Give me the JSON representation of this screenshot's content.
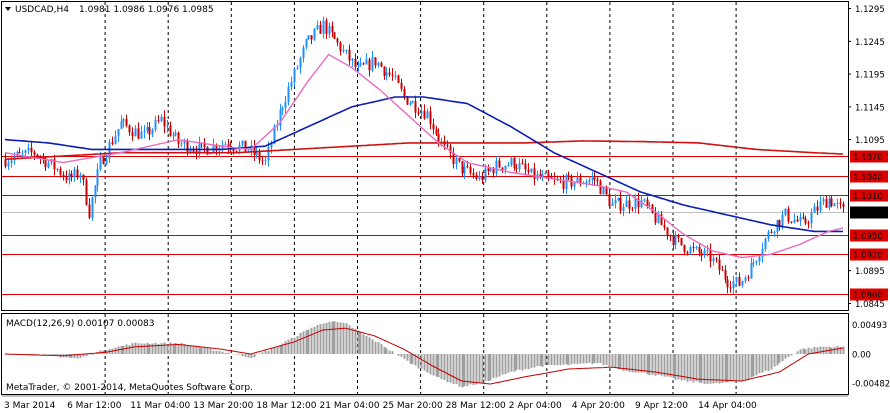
{
  "header": {
    "symbol": "USDCAD,H4",
    "ohlc": "1.0981 1.0986 1.0976 1.0985",
    "collapse_icon": "triangle-down-icon"
  },
  "macd": {
    "label": "MACD(12,26,9) 0.00107 0.00083",
    "axis_labels": [
      "0.00493",
      "0.00",
      "-0.00482"
    ]
  },
  "copyright": "MetaTrader, © 2001-2014, MetaQuotes Software Corp.",
  "colors": {
    "background": "#ffffff",
    "bull_candle": "#1e90ff",
    "bear_candle": "#cc0000",
    "ma_fast": "#e86cc0",
    "ma_slow": "#0a1eb4",
    "ma_long": "#d01010",
    "level_line": "#dd0000",
    "macd_hist": "#a0a0a0",
    "macd_signal": "#c80000"
  },
  "chart_data": {
    "type": "candlestick",
    "title": "USDCAD,H4",
    "price_axis": {
      "labels": [
        "1.1295",
        "1.1245",
        "1.1195",
        "1.1145",
        "1.1095",
        "1.0895",
        "1.0845"
      ],
      "range": [
        1.0835,
        1.1305
      ]
    },
    "price_levels": [
      {
        "label": "1.1070",
        "value": 1.107
      },
      {
        "label": "1.1040",
        "value": 1.104
      },
      {
        "label": "1.1010",
        "value": 1.101
      },
      {
        "label": "1.0950",
        "value": 1.095
      },
      {
        "label": "1.0920",
        "value": 1.092
      },
      {
        "label": "1.0860",
        "value": 1.086
      }
    ],
    "current_price": {
      "label": "1.0985",
      "value": 1.0985
    },
    "time_labels": [
      "3 Mar 2014",
      "6 Mar 12:00",
      "11 Mar 04:00",
      "13 Mar 20:00",
      "18 Mar 12:00",
      "21 Mar 04:00",
      "25 Mar 20:00",
      "28 Mar 12:00",
      "2 Apr 04:00",
      "4 Apr 20:00",
      "9 Apr 12:00",
      "14 Apr 04:00"
    ],
    "close_path": [
      [
        0,
        1.1065
      ],
      [
        10,
        1.1075
      ],
      [
        18,
        1.105
      ],
      [
        22,
        1.1035
      ],
      [
        26,
        1.1045
      ],
      [
        29,
        1.0985
      ],
      [
        33,
        1.106
      ],
      [
        40,
        1.112
      ],
      [
        48,
        1.11
      ],
      [
        54,
        1.1125
      ],
      [
        60,
        1.109
      ],
      [
        68,
        1.108
      ],
      [
        76,
        1.109
      ],
      [
        84,
        1.108
      ],
      [
        90,
        1.106
      ],
      [
        96,
        1.115
      ],
      [
        104,
        1.124
      ],
      [
        110,
        1.127
      ],
      [
        116,
        1.1235
      ],
      [
        122,
        1.12
      ],
      [
        128,
        1.1215
      ],
      [
        134,
        1.119
      ],
      [
        138,
        1.116
      ],
      [
        146,
        1.1135
      ],
      [
        152,
        1.108
      ],
      [
        158,
        1.105
      ],
      [
        164,
        1.1035
      ],
      [
        170,
        1.1055
      ],
      [
        176,
        1.106
      ],
      [
        182,
        1.104
      ],
      [
        190,
        1.103
      ],
      [
        196,
        1.103
      ],
      [
        204,
        1.1035
      ],
      [
        210,
        1.0995
      ],
      [
        220,
        1.1
      ],
      [
        226,
        1.097
      ],
      [
        232,
        1.094
      ],
      [
        238,
        1.0925
      ],
      [
        244,
        1.0915
      ],
      [
        250,
        1.088
      ],
      [
        254,
        1.0875
      ],
      [
        258,
        1.09
      ],
      [
        262,
        1.0935
      ],
      [
        266,
        1.0965
      ],
      [
        270,
        1.098
      ],
      [
        276,
        1.0965
      ],
      [
        282,
        1.0995
      ],
      [
        285,
        1.1005
      ],
      [
        290,
        1.0985
      ]
    ],
    "ma_fast": [
      [
        0,
        1.1075
      ],
      [
        20,
        1.106
      ],
      [
        40,
        1.1075
      ],
      [
        60,
        1.1095
      ],
      [
        75,
        1.1085
      ],
      [
        85,
        1.108
      ],
      [
        95,
        1.112
      ],
      [
        105,
        1.1185
      ],
      [
        112,
        1.1225
      ],
      [
        120,
        1.1205
      ],
      [
        130,
        1.117
      ],
      [
        140,
        1.113
      ],
      [
        150,
        1.109
      ],
      [
        160,
        1.106
      ],
      [
        175,
        1.1045
      ],
      [
        190,
        1.1035
      ],
      [
        205,
        1.1025
      ],
      [
        215,
        1.1015
      ],
      [
        225,
        1.0985
      ],
      [
        235,
        1.095
      ],
      [
        245,
        1.0925
      ],
      [
        255,
        1.0915
      ],
      [
        265,
        1.092
      ],
      [
        275,
        1.0935
      ],
      [
        285,
        1.0955
      ],
      [
        290,
        1.096
      ]
    ],
    "ma_slow": [
      [
        0,
        1.1095
      ],
      [
        15,
        1.109
      ],
      [
        30,
        1.108
      ],
      [
        45,
        1.108
      ],
      [
        60,
        1.108
      ],
      [
        75,
        1.108
      ],
      [
        90,
        1.1085
      ],
      [
        105,
        1.1115
      ],
      [
        120,
        1.1145
      ],
      [
        135,
        1.116
      ],
      [
        145,
        1.116
      ],
      [
        160,
        1.115
      ],
      [
        175,
        1.1115
      ],
      [
        190,
        1.1075
      ],
      [
        205,
        1.1045
      ],
      [
        220,
        1.1015
      ],
      [
        235,
        1.0995
      ],
      [
        250,
        1.098
      ],
      [
        265,
        1.0965
      ],
      [
        280,
        1.0955
      ],
      [
        290,
        1.0955
      ]
    ],
    "ma_long": [
      [
        0,
        1.1065
      ],
      [
        20,
        1.107
      ],
      [
        40,
        1.1075
      ],
      [
        60,
        1.1075
      ],
      [
        80,
        1.1075
      ],
      [
        100,
        1.108
      ],
      [
        120,
        1.1085
      ],
      [
        140,
        1.109
      ],
      [
        160,
        1.109
      ],
      [
        180,
        1.109
      ],
      [
        200,
        1.1093
      ],
      [
        220,
        1.1092
      ],
      [
        240,
        1.109
      ],
      [
        260,
        1.108
      ],
      [
        280,
        1.1075
      ],
      [
        290,
        1.1073
      ]
    ],
    "macd_range": [
      -0.006,
      0.006
    ],
    "macd_hist": [
      [
        0,
        0.0
      ],
      [
        15,
        -0.0002
      ],
      [
        25,
        -0.0008
      ],
      [
        35,
        0.0008
      ],
      [
        45,
        0.0018
      ],
      [
        60,
        0.0018
      ],
      [
        75,
        0.0004
      ],
      [
        85,
        -0.0006
      ],
      [
        95,
        0.0015
      ],
      [
        105,
        0.0042
      ],
      [
        112,
        0.0055
      ],
      [
        118,
        0.005
      ],
      [
        125,
        0.003
      ],
      [
        132,
        0.001
      ],
      [
        140,
        -0.0015
      ],
      [
        150,
        -0.004
      ],
      [
        158,
        -0.0055
      ],
      [
        165,
        -0.0048
      ],
      [
        175,
        -0.003
      ],
      [
        185,
        -0.002
      ],
      [
        195,
        -0.0018
      ],
      [
        205,
        -0.0015
      ],
      [
        215,
        -0.0028
      ],
      [
        225,
        -0.0035
      ],
      [
        235,
        -0.0045
      ],
      [
        245,
        -0.005
      ],
      [
        255,
        -0.0045
      ],
      [
        265,
        -0.0025
      ],
      [
        275,
        0.0008
      ],
      [
        282,
        0.0012
      ],
      [
        290,
        0.0012
      ]
    ],
    "macd_signal": [
      [
        0,
        0.0
      ],
      [
        20,
        -0.0003
      ],
      [
        35,
        0.0003
      ],
      [
        45,
        0.0012
      ],
      [
        60,
        0.0016
      ],
      [
        75,
        0.0008
      ],
      [
        85,
        0.0
      ],
      [
        100,
        0.002
      ],
      [
        110,
        0.004
      ],
      [
        118,
        0.0043
      ],
      [
        128,
        0.003
      ],
      [
        138,
        0.0008
      ],
      [
        148,
        -0.002
      ],
      [
        158,
        -0.0045
      ],
      [
        168,
        -0.005
      ],
      [
        180,
        -0.0038
      ],
      [
        195,
        -0.0025
      ],
      [
        210,
        -0.0022
      ],
      [
        225,
        -0.003
      ],
      [
        240,
        -0.0042
      ],
      [
        255,
        -0.0045
      ],
      [
        268,
        -0.003
      ],
      [
        278,
        0.0
      ],
      [
        290,
        0.001
      ]
    ]
  }
}
